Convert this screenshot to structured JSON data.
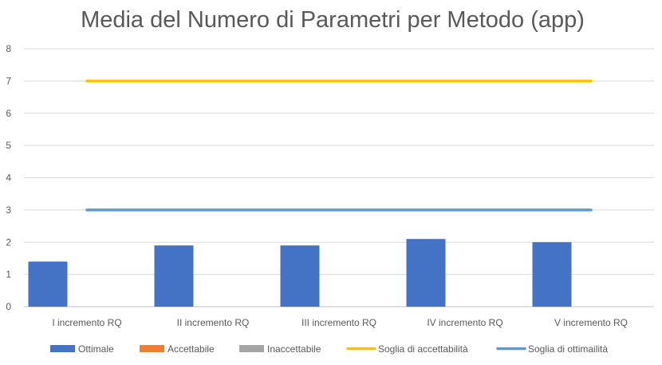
{
  "chart_data": {
    "type": "bar",
    "title": "Media del Numero di Parametri per Metodo (app)",
    "categories": [
      "I incremento RQ",
      "II incremento RQ",
      "III incremento RQ",
      "IV incremento RQ",
      "V incremento RQ"
    ],
    "series": [
      {
        "name": "Ottimale",
        "kind": "bar",
        "color": "#4472C4",
        "values": [
          1.4,
          1.9,
          1.9,
          2.1,
          2.0
        ]
      },
      {
        "name": "Accettabile",
        "kind": "bar",
        "color": "#ED7D31",
        "values": [
          0,
          0,
          0,
          0,
          0
        ]
      },
      {
        "name": "Inaccettabile",
        "kind": "bar",
        "color": "#A5A5A5",
        "values": [
          0,
          0,
          0,
          0,
          0
        ]
      },
      {
        "name": "Soglia di accettabilità",
        "kind": "line",
        "color": "#FFC000",
        "values": [
          7,
          7,
          7,
          7,
          7
        ]
      },
      {
        "name": "Soglia di ottimailità",
        "kind": "line",
        "color": "#5B9BD5",
        "values": [
          3,
          3,
          3,
          3,
          3
        ]
      }
    ],
    "y_ticks": [
      "0",
      "1",
      "2",
      "3",
      "4",
      "5",
      "6",
      "7",
      "8"
    ],
    "ylim": [
      0,
      8
    ],
    "xlabel": "",
    "ylabel": "",
    "grid": true,
    "legend_position": "bottom"
  }
}
